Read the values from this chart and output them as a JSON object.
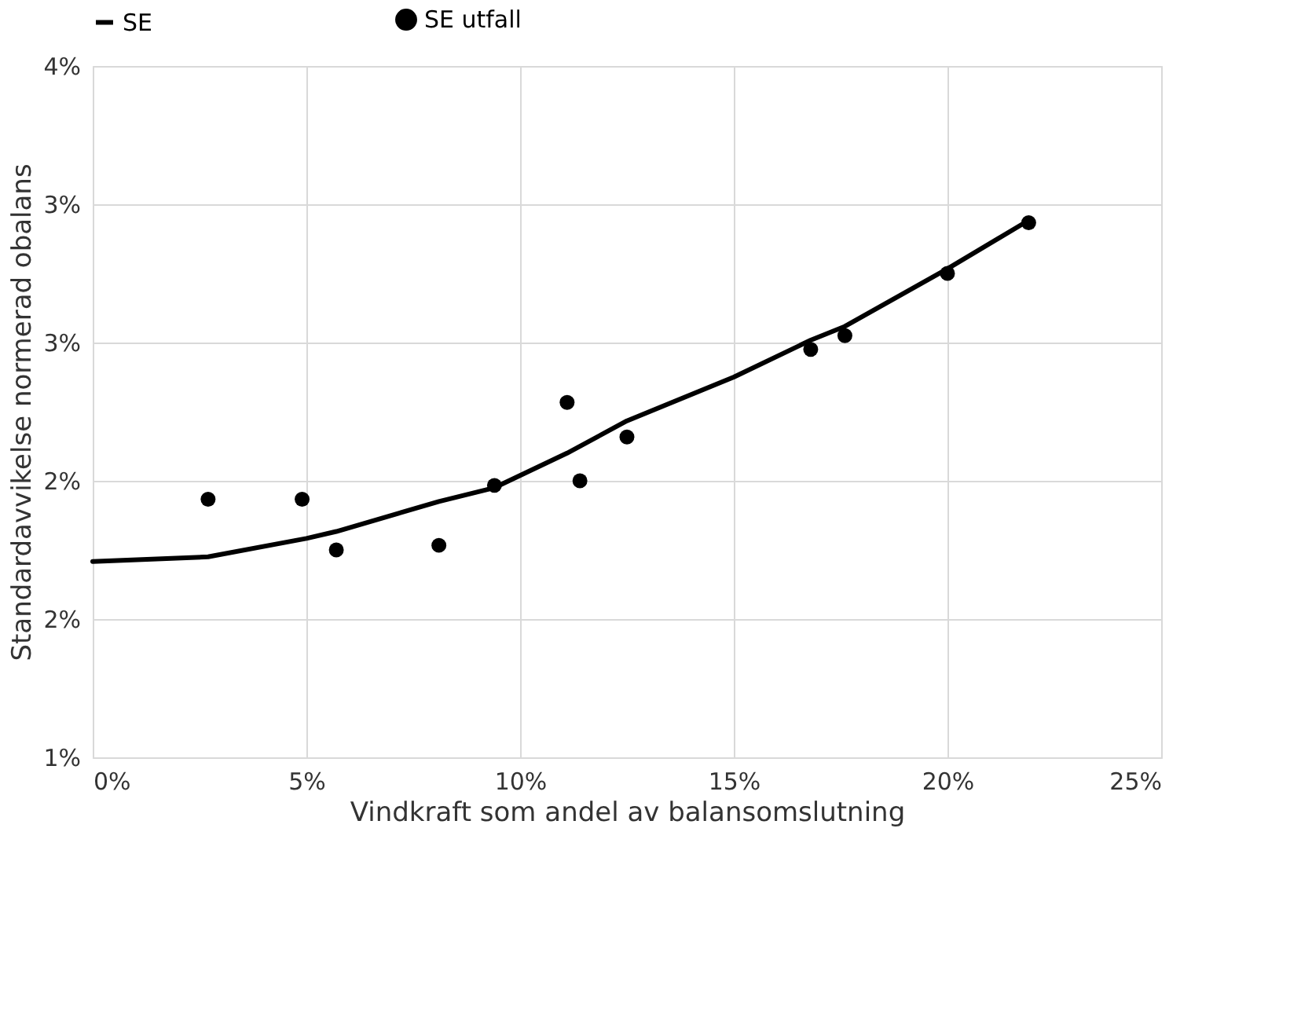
{
  "chart_data": {
    "type": "line",
    "xlabel": "Vindkraft som andel av balansomslutning",
    "ylabel": "Standardavvikelse normerad obalans",
    "xlim": [
      0,
      25
    ],
    "xticks": [
      {
        "value": 0,
        "label": "0%"
      },
      {
        "value": 5,
        "label": "5%"
      },
      {
        "value": 10,
        "label": "10%"
      },
      {
        "value": 15,
        "label": "15%"
      },
      {
        "value": 20,
        "label": "20%"
      },
      {
        "value": 25,
        "label": "25%"
      }
    ],
    "ylim": [
      1,
      4
    ],
    "yticks": [
      {
        "value": 1,
        "label": "1%"
      },
      {
        "value": 1.6,
        "label": "2%"
      },
      {
        "value": 2.2,
        "label": "2%"
      },
      {
        "value": 2.8,
        "label": "3%"
      },
      {
        "value": 3.4,
        "label": "3%"
      },
      {
        "value": 4,
        "label": "4%"
      }
    ],
    "grid": true,
    "legend": "top",
    "series": [
      {
        "name": "SE",
        "color": "#000000",
        "line_style": "solid",
        "x": [
          0,
          2.7,
          5,
          5.7,
          8.1,
          9.4,
          11.1,
          12.5,
          15,
          16.8,
          17.6,
          20,
          21.9
        ],
        "values": [
          1.85,
          1.87,
          1.95,
          1.98,
          2.11,
          2.17,
          2.32,
          2.46,
          2.65,
          2.81,
          2.87,
          3.12,
          3.33
        ]
      },
      {
        "name": "SE utfall",
        "type": "scatter",
        "color": "#000000",
        "marker": "circle",
        "x": [
          2.7,
          4.9,
          5.7,
          8.1,
          9.4,
          11.1,
          11.4,
          12.5,
          16.8,
          17.6,
          20.0,
          21.9
        ],
        "values": [
          2.12,
          2.12,
          1.9,
          1.92,
          2.18,
          2.54,
          2.2,
          2.39,
          2.77,
          2.83,
          3.1,
          3.32
        ]
      }
    ]
  }
}
